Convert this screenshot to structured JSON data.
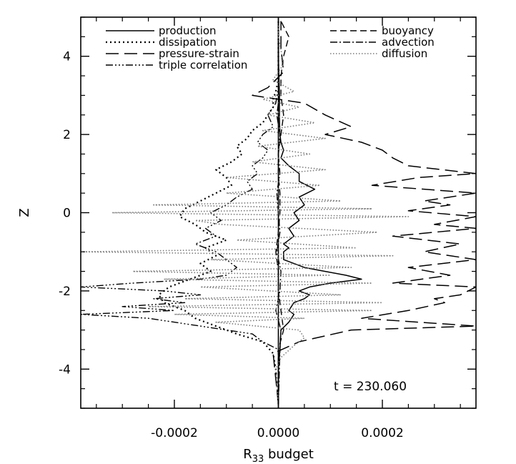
{
  "chart_data": {
    "type": "line",
    "xlabel": "R",
    "xlabel_sub": "33",
    "xlabel_suffix": " budget",
    "ylabel": "Z",
    "xlim": [
      -0.00038,
      0.00038
    ],
    "ylim": [
      -5,
      5
    ],
    "x_ticks": [
      {
        "value": -0.0002,
        "label": "-0.0002"
      },
      {
        "value": 0.0,
        "label": "0.0000"
      },
      {
        "value": 0.0002,
        "label": "0.0002"
      }
    ],
    "y_ticks": [
      {
        "value": -4,
        "label": "-4"
      },
      {
        "value": -2,
        "label": "-2"
      },
      {
        "value": 0,
        "label": "0"
      },
      {
        "value": 2,
        "label": "2"
      },
      {
        "value": 4,
        "label": "4"
      }
    ],
    "legend_placement": "top",
    "annotation": "t = 230.060",
    "series": [
      {
        "name": "production",
        "dash": "",
        "color": "#000000",
        "width": 1.5,
        "legend_col": 0,
        "legend_row": 0,
        "z": [
          -4.9,
          -4,
          -3.5,
          -3,
          -2.8,
          -2.6,
          -2.5,
          -2.3,
          -2.2,
          -2.1,
          -2.0,
          -1.9,
          -1.8,
          -1.7,
          -1.6,
          -1.5,
          -1.4,
          -1.3,
          -1.2,
          -1.1,
          -1.0,
          -0.9,
          -0.8,
          -0.6,
          -0.4,
          -0.2,
          0,
          0.2,
          0.4,
          0.6,
          0.8,
          1.0,
          1.2,
          1.4,
          1.6,
          1.8,
          2.0,
          2.4,
          3.0,
          4.0,
          4.9
        ],
        "x": [
          0,
          0,
          3e-06,
          5e-06,
          2e-05,
          3e-05,
          2e-05,
          3e-05,
          5e-05,
          6e-05,
          4e-05,
          6e-05,
          0.0001,
          0.00016,
          0.00013,
          9e-05,
          5e-05,
          3e-05,
          1e-05,
          1e-05,
          1e-05,
          2e-05,
          1e-05,
          3e-05,
          2e-05,
          4e-05,
          3e-05,
          5e-05,
          4e-05,
          7e-05,
          4e-05,
          4e-05,
          2e-05,
          5e-06,
          1e-05,
          5e-06,
          3e-06,
          2e-06,
          2e-06,
          0,
          0
        ]
      },
      {
        "name": "dissipation",
        "dash": "2 4",
        "color": "#000000",
        "width": 2.2,
        "legend_col": 0,
        "legend_row": 1,
        "z": [
          -4.9,
          -4,
          -3.6,
          -3.3,
          -3.1,
          -2.9,
          -2.7,
          -2.5,
          -2.3,
          -2.1,
          -1.9,
          -1.7,
          -1.5,
          -1.3,
          -1.1,
          -0.9,
          -0.7,
          -0.5,
          -0.3,
          -0.1,
          0.1,
          0.3,
          0.5,
          0.7,
          0.9,
          1.1,
          1.3,
          1.5,
          1.7,
          1.9,
          2.1,
          2.3,
          2.5,
          2.7,
          2.9,
          3.1,
          3.4,
          4,
          4.9
        ],
        "x": [
          0,
          -5e-06,
          -1e-05,
          -3e-05,
          -8e-05,
          -0.00012,
          -0.00016,
          -0.00018,
          -0.00022,
          -0.00023,
          -0.00021,
          -0.00017,
          -0.00013,
          -0.00015,
          -0.00012,
          -0.00014,
          -0.0001,
          -0.00014,
          -0.00016,
          -0.00019,
          -0.00018,
          -0.00015,
          -0.00012,
          -9e-05,
          -0.0001,
          -0.00012,
          -9e-05,
          -7e-05,
          -8e-05,
          -6e-05,
          -5e-05,
          -3e-05,
          -2e-05,
          -1e-05,
          -1e-05,
          -5e-06,
          0,
          0,
          0
        ]
      },
      {
        "name": "pressure-strain",
        "dash": "18 8",
        "color": "#000000",
        "width": 1.5,
        "legend_col": 0,
        "legend_row": 2,
        "z": [
          -4.9,
          -3.6,
          -3.3,
          -3.0,
          -2.9,
          -2.7,
          -2.5,
          -2.3,
          -2.2,
          -2.1,
          -1.9,
          -1.8,
          -1.6,
          -1.4,
          -1.2,
          -1.0,
          -0.8,
          -0.6,
          -0.4,
          -0.3,
          -0.1,
          0.05,
          0.2,
          0.3,
          0.5,
          0.7,
          0.9,
          1.0,
          1.2,
          1.4,
          1.6,
          1.8,
          2.0,
          2.2,
          2.5,
          2.8,
          3.0,
          3.2,
          3.6,
          4.2,
          4.9
        ],
        "x": [
          0,
          -1e-05,
          4e-05,
          0.00014,
          0.00038,
          0.00016,
          0.00025,
          0.00032,
          0.0003,
          0.00035,
          0.00038,
          0.00022,
          0.00033,
          0.00025,
          0.00038,
          0.00028,
          0.00035,
          0.00022,
          0.00038,
          0.0003,
          0.00038,
          0.00025,
          0.00033,
          0.00028,
          0.00038,
          0.00018,
          0.00027,
          0.00038,
          0.00025,
          0.00022,
          0.0002,
          0.00016,
          9e-05,
          0.00014,
          9e-05,
          5e-05,
          -5e-05,
          -2e-05,
          1e-05,
          5e-06,
          5e-06
        ]
      },
      {
        "name": "triple correlation",
        "dash": "10 3 2 3 2 3 2 3",
        "color": "#000000",
        "width": 1.4,
        "legend_col": 0,
        "legend_row": 3,
        "z": [
          -4.9,
          -3.5,
          -3.3,
          -3.1,
          -2.9,
          -2.7,
          -2.6,
          -2.5,
          -2.4,
          -2.3,
          -2.2,
          -2.1,
          -2.0,
          -1.9,
          -1.8,
          -1.7,
          -1.6,
          -1.4,
          -1.2,
          -1.0,
          -0.8,
          -0.6,
          -0.4,
          -0.2,
          0,
          0.2,
          0.4,
          0.6,
          0.8,
          1.0,
          1.2,
          1.4,
          1.6,
          1.8,
          2.0,
          2.2,
          2.5,
          2.8,
          3.2,
          4,
          4.9
        ],
        "x": [
          0,
          0,
          -3e-05,
          -5e-05,
          -0.00015,
          -0.00025,
          -0.00038,
          -0.0002,
          -0.0003,
          -0.00018,
          -0.00024,
          -0.00015,
          -0.00022,
          -0.00038,
          -0.00028,
          -0.00015,
          -0.0001,
          -8e-05,
          -0.0001,
          -0.00012,
          -0.00016,
          -0.00012,
          -0.00014,
          -0.00011,
          -0.00013,
          -0.0001,
          -8e-05,
          -5e-05,
          -6e-05,
          -4e-05,
          -5e-05,
          -3e-05,
          -2e-05,
          -4e-05,
          -3e-05,
          -1e-05,
          -2e-05,
          -5e-06,
          0,
          0,
          0
        ]
      },
      {
        "name": "buoyancy",
        "dash": "9 5",
        "color": "#000000",
        "width": 1.4,
        "legend_col": 1,
        "legend_row": 0,
        "z": [
          -4.9,
          -3.5,
          -3.0,
          -2.5,
          -2.0,
          -1.5,
          -1.0,
          -0.5,
          0,
          0.5,
          1.0,
          1.5,
          2.0,
          2.5,
          3.0,
          3.5,
          4.0,
          4.5,
          4.9
        ],
        "x": [
          0,
          0,
          1e-05,
          5e-06,
          0,
          0,
          -5e-06,
          0,
          3e-06,
          3e-06,
          0,
          0,
          5e-06,
          1e-05,
          5e-06,
          5e-06,
          1e-05,
          2e-05,
          5e-06
        ]
      },
      {
        "name": "advection",
        "dash": "10 3 2 3",
        "color": "#000000",
        "width": 1.4,
        "legend_col": 1,
        "legend_row": 1,
        "z": [
          -4.9,
          -3.5,
          -3.0,
          -2.5,
          -2.0,
          -1.5,
          -1.0,
          -0.5,
          0,
          0.5,
          1.0,
          1.5,
          2.0,
          2.5,
          3.0,
          3.5,
          4.0,
          4.9
        ],
        "x": [
          0,
          3e-06,
          5e-06,
          -5e-06,
          3e-06,
          5e-06,
          -3e-06,
          3e-06,
          0,
          -3e-06,
          3e-06,
          0,
          3e-06,
          -3e-06,
          2e-06,
          0,
          0,
          0
        ]
      },
      {
        "name": "diffusion",
        "dash": "1.5 2.5",
        "color": "#7a7a7a",
        "width": 1.6,
        "legend_col": 1,
        "legend_row": 2,
        "z": [
          -4.9,
          -4.0,
          -3.7,
          -3.4,
          -3.2,
          -3.0,
          -2.8,
          -2.7,
          -2.6,
          -2.5,
          -2.4,
          -2.3,
          -2.2,
          -2.1,
          -1.9,
          -1.8,
          -1.7,
          -1.6,
          -1.5,
          -1.4,
          -1.2,
          -1.1,
          -1.0,
          -0.9,
          -0.7,
          -0.5,
          -0.3,
          -0.2,
          -0.1,
          0,
          0.1,
          0.2,
          0.3,
          0.5,
          0.7,
          0.9,
          1.1,
          1.3,
          1.5,
          1.7,
          1.9,
          2.1,
          2.3,
          2.5,
          2.7,
          2.9,
          3.1,
          3.4,
          3.8,
          4.5,
          4.9
        ],
        "x": [
          0,
          -5e-06,
          5e-06,
          3e-05,
          5e-05,
          4e-05,
          -0.00012,
          5e-05,
          -0.0002,
          0.00018,
          -0.00025,
          0.0002,
          -0.00018,
          0.00012,
          -0.00015,
          0.00018,
          -0.00022,
          0.0001,
          -0.00028,
          0.00014,
          -0.00013,
          0.00022,
          -0.00038,
          0.00015,
          -8e-05,
          0.00019,
          -0.00011,
          -0.00016,
          0.00025,
          -0.00032,
          0.00018,
          -0.00024,
          0.00012,
          -0.0001,
          8e-05,
          -0.0001,
          9e-05,
          -5e-05,
          6e-05,
          -4e-05,
          9e-05,
          -3e-05,
          7e-05,
          -2e-05,
          4e-05,
          -3e-05,
          3e-05,
          -1e-05,
          1e-05,
          0,
          0
        ]
      }
    ]
  }
}
